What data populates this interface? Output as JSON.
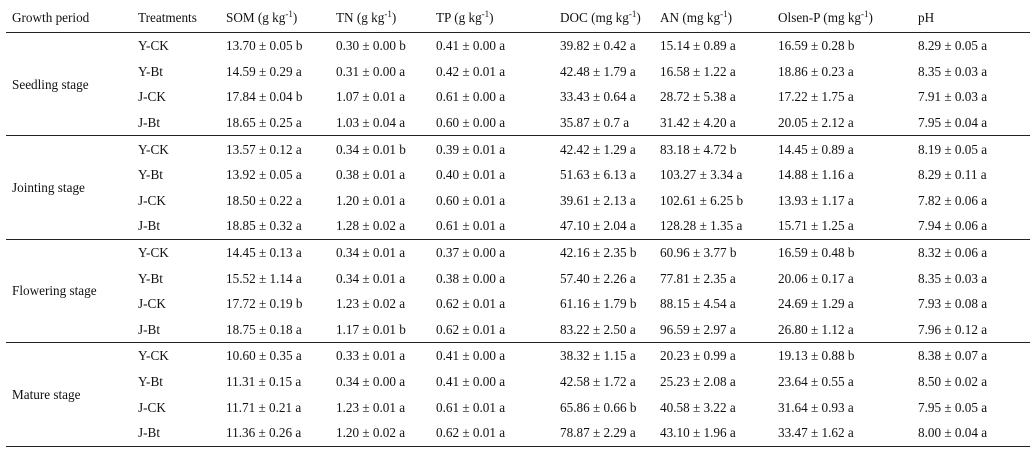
{
  "header": {
    "growth_period": "Growth period",
    "treatments": "Treatments",
    "som": "SOM (g kg",
    "tn": "TN (g kg",
    "tp": "TP (g kg",
    "doc": "DOC (mg kg",
    "an": "AN (mg kg",
    "olsen_p": "Olsen-P (mg kg",
    "ph": "pH",
    "unit_sup": "-1",
    "close": ")"
  },
  "groups": [
    {
      "period": "Seedling stage",
      "rows": [
        [
          "Y-CK",
          "13.70 ± 0.05 b",
          "0.30 ± 0.00 b",
          "0.41 ± 0.00 a",
          "39.82 ± 0.42 a",
          "15.14 ± 0.89 a",
          "16.59 ± 0.28 b",
          "8.29 ± 0.05 a"
        ],
        [
          "Y-Bt",
          "14.59 ± 0.29 a",
          "0.31 ± 0.00 a",
          "0.42 ± 0.01 a",
          "42.48 ± 1.79 a",
          "16.58 ± 1.22 a",
          "18.86 ± 0.23 a",
          "8.35 ± 0.03 a"
        ],
        [
          "J-CK",
          "17.84 ± 0.04 b",
          "1.07 ± 0.01 a",
          "0.61 ± 0.00 a",
          "33.43 ± 0.64 a",
          "28.72 ± 5.38 a",
          "17.22 ± 1.75 a",
          "7.91 ± 0.03 a"
        ],
        [
          "J-Bt",
          "18.65 ± 0.25 a",
          "1.03 ± 0.04 a",
          "0.60 ± 0.00 a",
          "35.87 ± 0.7 a",
          "31.42 ± 4.20 a",
          "20.05 ± 2.12 a",
          "7.95 ± 0.04 a"
        ]
      ]
    },
    {
      "period": "Jointing stage",
      "rows": [
        [
          "Y-CK",
          "13.57 ± 0.12 a",
          "0.34 ± 0.01 b",
          "0.39 ± 0.01 a",
          "42.42 ± 1.29 a",
          "83.18 ± 4.72 b",
          "14.45 ± 0.89 a",
          "8.19 ± 0.05 a"
        ],
        [
          "Y-Bt",
          "13.92 ± 0.05 a",
          "0.38 ± 0.01 a",
          "0.40 ± 0.01 a",
          "51.63 ± 6.13 a",
          "103.27 ± 3.34 a",
          "14.88 ± 1.16 a",
          "8.29 ± 0.11 a"
        ],
        [
          "J-CK",
          "18.50 ± 0.22 a",
          "1.20 ± 0.01 a",
          "0.60 ± 0.01 a",
          "39.61 ± 2.13 a",
          "102.61 ± 6.25 b",
          "13.93 ± 1.17 a",
          "7.82 ± 0.06 a"
        ],
        [
          "J-Bt",
          "18.85 ± 0.32 a",
          "1.28 ± 0.02 a",
          "0.61 ± 0.01 a",
          "47.10 ± 2.04 a",
          "128.28 ± 1.35 a",
          "15.71 ± 1.25 a",
          "7.94 ± 0.06 a"
        ]
      ]
    },
    {
      "period": "Flowering stage",
      "rows": [
        [
          "Y-CK",
          "14.45 ± 0.13 a",
          "0.34 ± 0.01 a",
          "0.37 ± 0.00 a",
          "42.16 ± 2.35 b",
          "60.96 ± 3.77 b",
          "16.59 ± 0.48 b",
          "8.32 ± 0.06 a"
        ],
        [
          "Y-Bt",
          "15.52 ± 1.14 a",
          "0.34 ± 0.01 a",
          "0.38 ± 0.00 a",
          "57.40 ± 2.26 a",
          "77.81 ± 2.35 a",
          "20.06 ± 0.17 a",
          "8.35 ± 0.03 a"
        ],
        [
          "J-CK",
          "17.72 ± 0.19 b",
          "1.23 ± 0.02 a",
          "0.62 ± 0.01 a",
          "61.16 ± 1.79 b",
          "88.15 ± 4.54 a",
          "24.69 ± 1.29 a",
          "7.93 ± 0.08 a"
        ],
        [
          "J-Bt",
          "18.75 ± 0.18 a",
          "1.17 ± 0.01 b",
          "0.62 ± 0.01 a",
          "83.22 ± 2.50 a",
          "96.59 ± 2.97 a",
          "26.80 ± 1.12 a",
          "7.96 ± 0.12 a"
        ]
      ]
    },
    {
      "period": "Mature stage",
      "rows": [
        [
          "Y-CK",
          "10.60 ± 0.35 a",
          "0.33 ± 0.01 a",
          "0.41 ± 0.00 a",
          "38.32 ± 1.15 a",
          "20.23 ± 0.99 a",
          "19.13 ± 0.88 b",
          "8.38 ± 0.07 a"
        ],
        [
          "Y-Bt",
          "11.31 ± 0.15 a",
          "0.34 ± 0.00 a",
          "0.41 ± 0.00 a",
          "42.58 ± 1.72 a",
          "25.23 ± 2.08 a",
          "23.64 ± 0.55 a",
          "8.50 ± 0.02 a"
        ],
        [
          "J-CK",
          "11.71 ± 0.21 a",
          "1.23 ± 0.01 a",
          "0.61 ± 0.01 a",
          "65.86 ± 0.66 b",
          "40.58 ± 3.22 a",
          "31.64 ± 0.93 a",
          "7.95 ± 0.05 a"
        ],
        [
          "J-Bt",
          "11.36 ± 0.26 a",
          "1.20 ± 0.02 a",
          "0.62 ± 0.01 a",
          "78.87 ± 2.29 a",
          "43.10 ± 1.96 a",
          "33.47 ± 1.62 a",
          "8.00 ± 0.04 a"
        ]
      ]
    }
  ]
}
